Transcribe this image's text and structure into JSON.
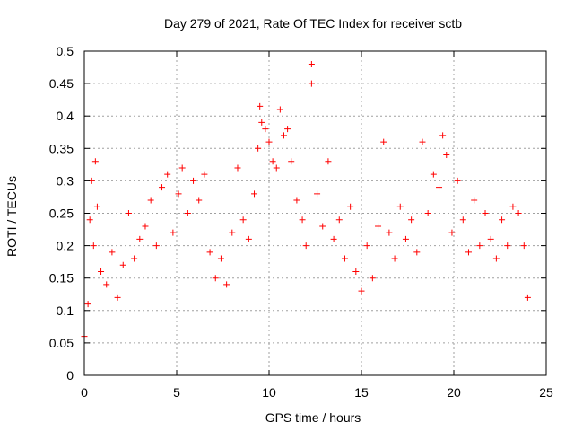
{
  "chart_data": {
    "type": "scatter",
    "title": "Day 279 of 2021, Rate Of TEC Index for receiver sctb",
    "xlabel": "GPS time / hours",
    "ylabel": "ROTI / TECUs",
    "xlim": [
      0,
      25
    ],
    "ylim": [
      0,
      0.5
    ],
    "xticks": [
      0,
      5,
      10,
      15,
      20,
      25
    ],
    "yticks": [
      0,
      0.05,
      0.1,
      0.15,
      0.2,
      0.25,
      0.3,
      0.35,
      0.4,
      0.45,
      0.5
    ],
    "xtick_labels": [
      "0",
      "5",
      "10",
      "15",
      "20",
      "25"
    ],
    "ytick_labels": [
      "0",
      "0.05",
      "0.1",
      "0.15",
      "0.2",
      "0.25",
      "0.3",
      "0.35",
      "0.4",
      "0.45",
      "0.5"
    ],
    "grid": true,
    "marker": "+",
    "colors": {
      "points": "#ff0000",
      "grid": "#a0a0a0",
      "axes": "#000000"
    },
    "series": [
      {
        "values": [
          [
            0.0,
            0.06
          ],
          [
            0.2,
            0.11
          ],
          [
            0.3,
            0.24
          ],
          [
            0.4,
            0.3
          ],
          [
            0.5,
            0.2
          ],
          [
            0.6,
            0.33
          ],
          [
            0.7,
            0.26
          ],
          [
            0.9,
            0.16
          ],
          [
            1.2,
            0.14
          ],
          [
            1.5,
            0.19
          ],
          [
            1.8,
            0.12
          ],
          [
            2.1,
            0.17
          ],
          [
            2.4,
            0.25
          ],
          [
            2.7,
            0.18
          ],
          [
            3.0,
            0.21
          ],
          [
            3.3,
            0.23
          ],
          [
            3.6,
            0.27
          ],
          [
            3.9,
            0.2
          ],
          [
            4.2,
            0.29
          ],
          [
            4.5,
            0.31
          ],
          [
            4.8,
            0.22
          ],
          [
            5.1,
            0.28
          ],
          [
            5.3,
            0.32
          ],
          [
            5.6,
            0.25
          ],
          [
            5.9,
            0.3
          ],
          [
            6.2,
            0.27
          ],
          [
            6.5,
            0.31
          ],
          [
            6.8,
            0.19
          ],
          [
            7.1,
            0.15
          ],
          [
            7.4,
            0.18
          ],
          [
            7.7,
            0.14
          ],
          [
            8.0,
            0.22
          ],
          [
            8.3,
            0.32
          ],
          [
            8.6,
            0.24
          ],
          [
            8.9,
            0.21
          ],
          [
            9.2,
            0.28
          ],
          [
            9.4,
            0.35
          ],
          [
            9.5,
            0.415
          ],
          [
            9.6,
            0.39
          ],
          [
            9.8,
            0.38
          ],
          [
            10.0,
            0.36
          ],
          [
            10.2,
            0.33
          ],
          [
            10.4,
            0.32
          ],
          [
            10.6,
            0.41
          ],
          [
            10.8,
            0.37
          ],
          [
            11.0,
            0.38
          ],
          [
            11.2,
            0.33
          ],
          [
            11.5,
            0.27
          ],
          [
            11.8,
            0.24
          ],
          [
            12.0,
            0.2
          ],
          [
            12.3,
            0.48
          ],
          [
            12.3,
            0.45
          ],
          [
            12.6,
            0.28
          ],
          [
            12.9,
            0.23
          ],
          [
            13.2,
            0.33
          ],
          [
            13.5,
            0.21
          ],
          [
            13.8,
            0.24
          ],
          [
            14.1,
            0.18
          ],
          [
            14.4,
            0.26
          ],
          [
            14.7,
            0.16
          ],
          [
            15.0,
            0.13
          ],
          [
            15.3,
            0.2
          ],
          [
            15.6,
            0.15
          ],
          [
            15.9,
            0.23
          ],
          [
            16.2,
            0.36
          ],
          [
            16.5,
            0.22
          ],
          [
            16.8,
            0.18
          ],
          [
            17.1,
            0.26
          ],
          [
            17.4,
            0.21
          ],
          [
            17.7,
            0.24
          ],
          [
            18.0,
            0.19
          ],
          [
            18.3,
            0.36
          ],
          [
            18.6,
            0.25
          ],
          [
            18.9,
            0.31
          ],
          [
            19.2,
            0.29
          ],
          [
            19.4,
            0.37
          ],
          [
            19.6,
            0.34
          ],
          [
            19.9,
            0.22
          ],
          [
            20.2,
            0.3
          ],
          [
            20.5,
            0.24
          ],
          [
            20.8,
            0.19
          ],
          [
            21.1,
            0.27
          ],
          [
            21.4,
            0.2
          ],
          [
            21.7,
            0.25
          ],
          [
            22.0,
            0.21
          ],
          [
            22.3,
            0.18
          ],
          [
            22.6,
            0.24
          ],
          [
            22.9,
            0.2
          ],
          [
            23.2,
            0.26
          ],
          [
            23.5,
            0.25
          ],
          [
            23.8,
            0.2
          ],
          [
            24.0,
            0.12
          ]
        ]
      }
    ]
  }
}
